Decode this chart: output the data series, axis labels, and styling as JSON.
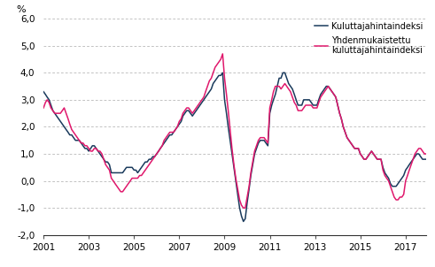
{
  "title": "",
  "ylabel": "%",
  "ylim": [
    -2.0,
    6.0
  ],
  "yticks": [
    -2.0,
    -1.0,
    0.0,
    1.0,
    2.0,
    3.0,
    4.0,
    5.0,
    6.0
  ],
  "xticks": [
    2001,
    2003,
    2005,
    2007,
    2009,
    2011,
    2013,
    2015,
    2017
  ],
  "color_khi": "#1a3a5c",
  "color_yhkhi": "#e0186c",
  "label_khi": "Kuluttajahintaindeksi",
  "label_yhkhi": "Yhdenmukaistettu\nkuluttajahintaindeksi",
  "linewidth": 1.1,
  "khi": [
    3.3,
    3.2,
    3.1,
    3.0,
    2.8,
    2.6,
    2.5,
    2.4,
    2.3,
    2.2,
    2.1,
    2.0,
    1.9,
    1.8,
    1.7,
    1.7,
    1.6,
    1.5,
    1.5,
    1.5,
    1.4,
    1.3,
    1.2,
    1.2,
    1.1,
    1.2,
    1.3,
    1.3,
    1.2,
    1.1,
    1.0,
    0.9,
    0.8,
    0.7,
    0.7,
    0.6,
    0.3,
    0.3,
    0.3,
    0.3,
    0.3,
    0.3,
    0.3,
    0.4,
    0.5,
    0.5,
    0.5,
    0.5,
    0.4,
    0.4,
    0.3,
    0.4,
    0.5,
    0.6,
    0.7,
    0.7,
    0.8,
    0.8,
    0.9,
    0.9,
    1.0,
    1.1,
    1.2,
    1.3,
    1.4,
    1.5,
    1.6,
    1.7,
    1.7,
    1.8,
    1.9,
    2.0,
    2.1,
    2.2,
    2.4,
    2.5,
    2.6,
    2.6,
    2.5,
    2.4,
    2.5,
    2.6,
    2.7,
    2.8,
    2.9,
    3.0,
    3.1,
    3.2,
    3.3,
    3.4,
    3.6,
    3.7,
    3.8,
    3.9,
    3.9,
    4.0,
    3.0,
    2.5,
    2.0,
    1.5,
    1.0,
    0.5,
    0.0,
    -0.5,
    -1.0,
    -1.3,
    -1.5,
    -1.4,
    -0.8,
    -0.3,
    0.2,
    0.6,
    1.0,
    1.2,
    1.4,
    1.5,
    1.5,
    1.5,
    1.4,
    1.3,
    2.5,
    2.8,
    3.0,
    3.2,
    3.5,
    3.8,
    3.8,
    4.0,
    4.0,
    3.8,
    3.6,
    3.5,
    3.4,
    3.2,
    3.0,
    2.8,
    2.8,
    2.8,
    3.0,
    3.0,
    3.0,
    3.0,
    2.9,
    2.8,
    2.8,
    2.8,
    3.0,
    3.2,
    3.3,
    3.4,
    3.5,
    3.5,
    3.4,
    3.3,
    3.2,
    3.1,
    2.8,
    2.5,
    2.3,
    2.0,
    1.8,
    1.6,
    1.5,
    1.4,
    1.3,
    1.2,
    1.2,
    1.2,
    1.0,
    0.9,
    0.8,
    0.8,
    0.9,
    1.0,
    1.1,
    1.0,
    0.9,
    0.8,
    0.8,
    0.8,
    0.5,
    0.3,
    0.2,
    0.1,
    -0.1,
    -0.2,
    -0.2,
    -0.2,
    -0.1,
    0.0,
    0.1,
    0.2,
    0.4,
    0.5,
    0.6,
    0.7,
    0.8,
    0.9,
    1.0,
    1.0,
    0.9,
    0.8,
    0.8,
    0.8,
    0.8,
    0.8,
    0.8,
    0.9,
    0.9,
    0.9
  ],
  "yhkhi": [
    2.7,
    2.9,
    3.0,
    2.9,
    2.7,
    2.6,
    2.5,
    2.5,
    2.5,
    2.5,
    2.6,
    2.7,
    2.5,
    2.3,
    2.1,
    1.9,
    1.8,
    1.7,
    1.6,
    1.5,
    1.4,
    1.4,
    1.3,
    1.3,
    1.2,
    1.1,
    1.1,
    1.2,
    1.2,
    1.1,
    1.1,
    1.0,
    0.8,
    0.6,
    0.5,
    0.4,
    0.1,
    0.0,
    -0.1,
    -0.2,
    -0.3,
    -0.4,
    -0.4,
    -0.3,
    -0.2,
    -0.1,
    0.0,
    0.1,
    0.1,
    0.1,
    0.1,
    0.2,
    0.2,
    0.3,
    0.4,
    0.5,
    0.6,
    0.7,
    0.8,
    0.9,
    1.0,
    1.1,
    1.2,
    1.3,
    1.5,
    1.6,
    1.7,
    1.8,
    1.8,
    1.8,
    1.9,
    2.0,
    2.2,
    2.3,
    2.5,
    2.6,
    2.7,
    2.7,
    2.6,
    2.5,
    2.6,
    2.7,
    2.8,
    2.9,
    3.0,
    3.1,
    3.3,
    3.5,
    3.7,
    3.8,
    4.0,
    4.2,
    4.3,
    4.4,
    4.5,
    4.7,
    3.8,
    3.2,
    2.6,
    1.9,
    1.2,
    0.6,
    0.1,
    -0.3,
    -0.7,
    -0.9,
    -1.0,
    -1.0,
    -0.6,
    -0.2,
    0.3,
    0.7,
    1.1,
    1.3,
    1.5,
    1.6,
    1.6,
    1.6,
    1.5,
    1.4,
    2.7,
    3.0,
    3.3,
    3.5,
    3.5,
    3.5,
    3.4,
    3.5,
    3.6,
    3.5,
    3.4,
    3.3,
    3.1,
    2.9,
    2.8,
    2.6,
    2.6,
    2.6,
    2.7,
    2.8,
    2.8,
    2.8,
    2.8,
    2.7,
    2.7,
    2.7,
    2.9,
    3.1,
    3.2,
    3.3,
    3.4,
    3.5,
    3.4,
    3.3,
    3.2,
    3.1,
    2.8,
    2.5,
    2.3,
    2.0,
    1.8,
    1.6,
    1.5,
    1.4,
    1.3,
    1.2,
    1.2,
    1.2,
    1.0,
    0.9,
    0.8,
    0.8,
    0.9,
    1.0,
    1.1,
    1.0,
    0.9,
    0.8,
    0.8,
    0.8,
    0.4,
    0.2,
    0.1,
    0.0,
    -0.2,
    -0.4,
    -0.6,
    -0.7,
    -0.7,
    -0.6,
    -0.6,
    -0.5,
    0.0,
    0.2,
    0.4,
    0.6,
    0.8,
    1.0,
    1.1,
    1.2,
    1.2,
    1.1,
    1.0,
    1.0,
    0.9,
    0.9,
    0.8,
    0.9,
    0.9,
    0.8
  ]
}
